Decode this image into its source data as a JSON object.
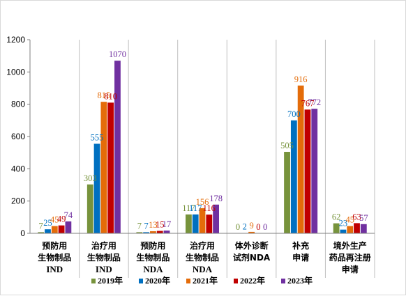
{
  "chart_data": {
    "type": "bar",
    "title": "",
    "xlabel": "",
    "ylabel": "",
    "ylim": [
      0,
      1200
    ],
    "yticks": [
      0,
      200,
      400,
      600,
      800,
      1000,
      1200
    ],
    "grid": false,
    "legend_position": "bottom",
    "categories": [
      [
        "预防用",
        "生物制品",
        "IND"
      ],
      [
        "治疗用",
        "生物制品",
        "IND"
      ],
      [
        "预防用",
        "生物制品",
        "NDA"
      ],
      [
        "治疗用",
        "生物制品",
        "NDA"
      ],
      [
        "体外诊断",
        "试剂NDA"
      ],
      [
        "补充",
        "申请"
      ],
      [
        "境外生产",
        "药品再注册",
        "申请"
      ]
    ],
    "series": [
      {
        "name": "2019年",
        "color": "#77933c",
        "values": [
          7,
          303,
          7,
          117,
          0,
          505,
          62
        ]
      },
      {
        "name": "2020年",
        "color": "#0070c0",
        "values": [
          25,
          555,
          7,
          117,
          2,
          700,
          23
        ]
      },
      {
        "name": "2021年",
        "color": "#e46c0a",
        "values": [
          45,
          815,
          13,
          156,
          9,
          916,
          45
        ]
      },
      {
        "name": "2022年",
        "color": "#c00000",
        "values": [
          49,
          810,
          15,
          116,
          0,
          767,
          63
        ]
      },
      {
        "name": "2023年",
        "color": "#7030a0",
        "values": [
          74,
          1070,
          17,
          178,
          0,
          772,
          57
        ]
      }
    ]
  }
}
